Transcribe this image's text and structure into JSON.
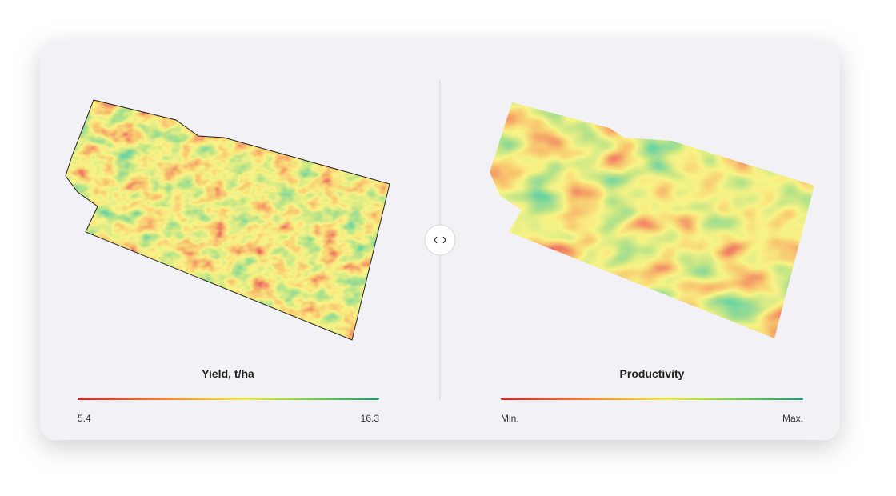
{
  "panels": [
    {
      "title": "Yield, t/ha",
      "legend": {
        "min": "5.4",
        "max": "16.3"
      }
    },
    {
      "title": "Productivity",
      "legend": {
        "min": "Min.",
        "max": "Max."
      }
    }
  ]
}
